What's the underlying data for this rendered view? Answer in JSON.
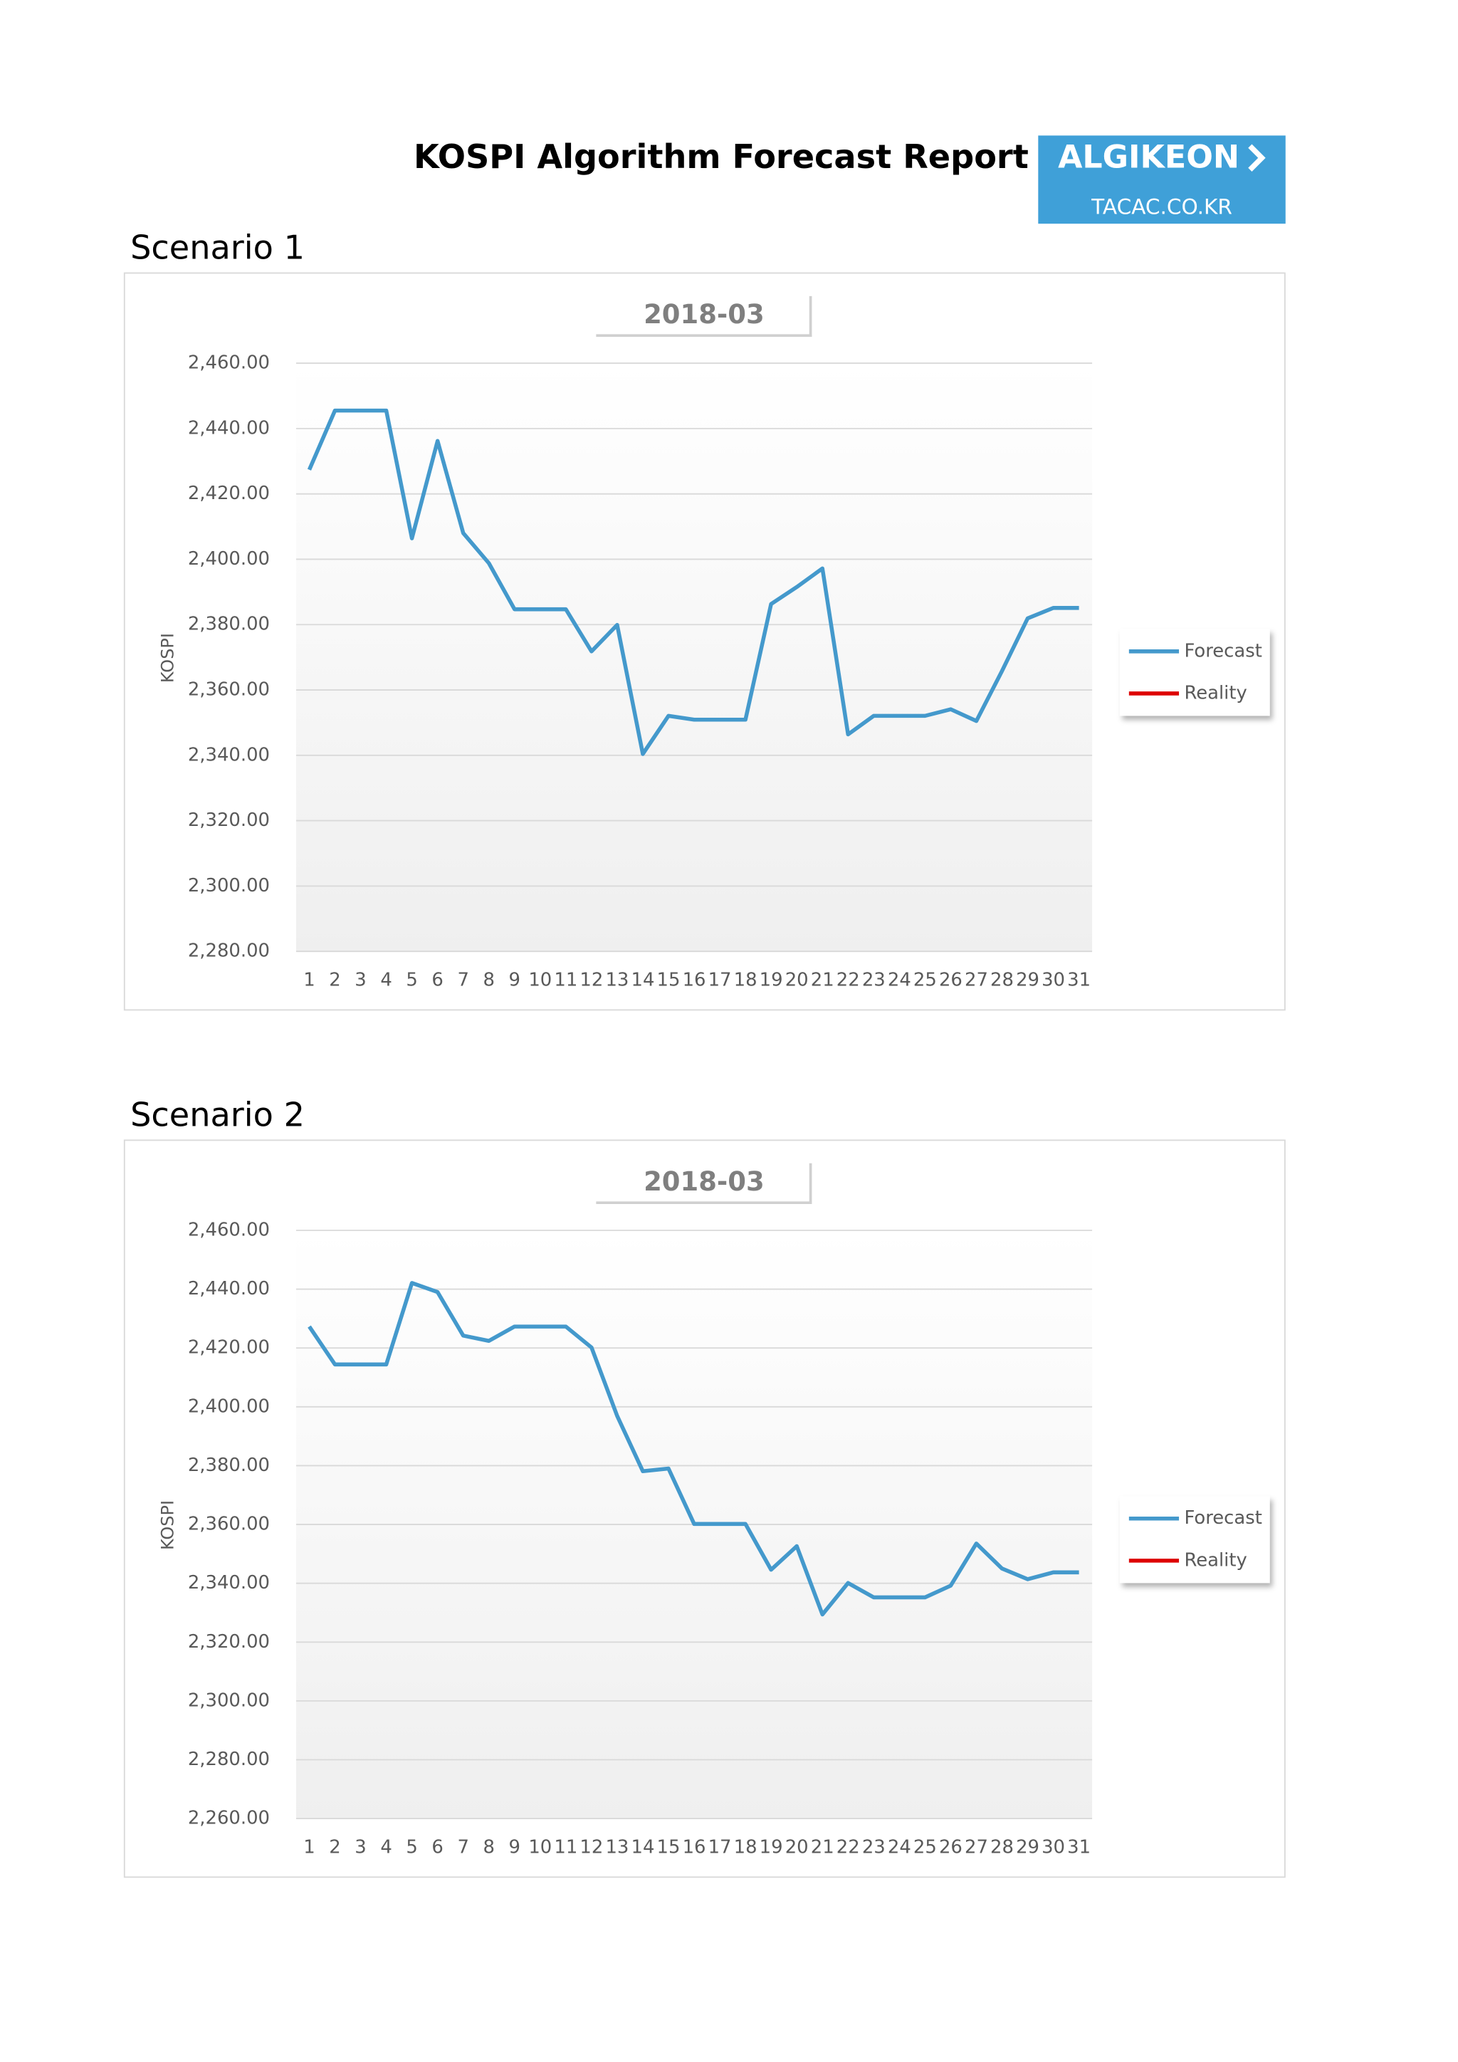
{
  "title": "KOSPI Algorithm Forecast Report",
  "logo": {
    "name": "ALGIKEON",
    "site": "TACAC.CO.KR"
  },
  "chart_data": [
    {
      "type": "line",
      "heading": "Scenario 1",
      "title": "2018-03",
      "y_label": "KOSPI",
      "categories": [
        "1",
        "2",
        "3",
        "4",
        "5",
        "6",
        "7",
        "8",
        "9",
        "10",
        "11",
        "12",
        "13",
        "14",
        "15",
        "16",
        "17",
        "18",
        "19",
        "20",
        "21",
        "22",
        "23",
        "24",
        "25",
        "26",
        "27",
        "28",
        "29",
        "30",
        "31"
      ],
      "series": [
        {
          "name": "Forecast",
          "color": "#4499cc",
          "values": [
            2427.4,
            2445.5,
            2445.5,
            2445.5,
            2406.4,
            2436.2,
            2408,
            2398.8,
            2384.7,
            2384.7,
            2384.7,
            2371.8,
            2379.9,
            2340.4,
            2352.1,
            2350.9,
            2350.9,
            2350.9,
            2386.3,
            2391.5,
            2397.2,
            2346.4,
            2352.1,
            2352.1,
            2352.1,
            2354.1,
            2350.5,
            2365.8,
            2381.9,
            2385.1,
            2385.1
          ]
        },
        {
          "name": "Reality",
          "color": "#dd0000",
          "values": [
            null,
            null,
            null,
            null,
            null,
            null,
            null,
            null,
            null,
            null,
            null,
            null,
            null,
            null,
            null,
            null,
            null,
            null,
            null,
            null,
            null,
            null,
            null,
            null,
            null,
            null,
            null,
            null,
            null,
            null,
            null
          ]
        }
      ],
      "ylim": [
        2280,
        2460
      ],
      "yticks": [
        {
          "value": 2280,
          "label": "2,280.00"
        },
        {
          "value": 2300,
          "label": "2,300.00"
        },
        {
          "value": 2320,
          "label": "2,320.00"
        },
        {
          "value": 2340,
          "label": "2,340.00"
        },
        {
          "value": 2360,
          "label": "2,360.00"
        },
        {
          "value": 2380,
          "label": "2,380.00"
        },
        {
          "value": 2400,
          "label": "2,400.00"
        },
        {
          "value": 2420,
          "label": "2,420.00"
        },
        {
          "value": 2440,
          "label": "2,440.00"
        },
        {
          "value": 2460,
          "label": "2,460.00"
        }
      ],
      "grid": true,
      "legend": "right"
    },
    {
      "type": "line",
      "heading": "Scenario 2",
      "title": "2018-03",
      "y_label": "KOSPI",
      "categories": [
        "1",
        "2",
        "3",
        "4",
        "5",
        "6",
        "7",
        "8",
        "9",
        "10",
        "11",
        "12",
        "13",
        "14",
        "15",
        "16",
        "17",
        "18",
        "19",
        "20",
        "21",
        "22",
        "23",
        "24",
        "25",
        "26",
        "27",
        "28",
        "29",
        "30",
        "31"
      ],
      "series": [
        {
          "name": "Forecast",
          "color": "#4499cc",
          "values": [
            2427.3,
            2414.4,
            2414.4,
            2414.4,
            2442.1,
            2439,
            2424.2,
            2422.4,
            2427.3,
            2427.3,
            2427.3,
            2420.2,
            2396.9,
            2378.1,
            2379,
            2360.2,
            2360.2,
            2360.2,
            2344.6,
            2352.6,
            2329.4,
            2340.1,
            2335.2,
            2335.2,
            2335.2,
            2339.2,
            2353.5,
            2345,
            2341.4,
            2343.7,
            2343.7
          ]
        },
        {
          "name": "Reality",
          "color": "#dd0000",
          "values": [
            null,
            null,
            null,
            null,
            null,
            null,
            null,
            null,
            null,
            null,
            null,
            null,
            null,
            null,
            null,
            null,
            null,
            null,
            null,
            null,
            null,
            null,
            null,
            null,
            null,
            null,
            null,
            null,
            null,
            null,
            null
          ]
        }
      ],
      "ylim": [
        2260,
        2460
      ],
      "yticks": [
        {
          "value": 2260,
          "label": "2,260.00"
        },
        {
          "value": 2280,
          "label": "2,280.00"
        },
        {
          "value": 2300,
          "label": "2,300.00"
        },
        {
          "value": 2320,
          "label": "2,320.00"
        },
        {
          "value": 2340,
          "label": "2,340.00"
        },
        {
          "value": 2360,
          "label": "2,360.00"
        },
        {
          "value": 2380,
          "label": "2,380.00"
        },
        {
          "value": 2400,
          "label": "2,400.00"
        },
        {
          "value": 2420,
          "label": "2,420.00"
        },
        {
          "value": 2440,
          "label": "2,440.00"
        },
        {
          "value": 2460,
          "label": "2,460.00"
        }
      ],
      "grid": true,
      "legend": "right"
    }
  ]
}
